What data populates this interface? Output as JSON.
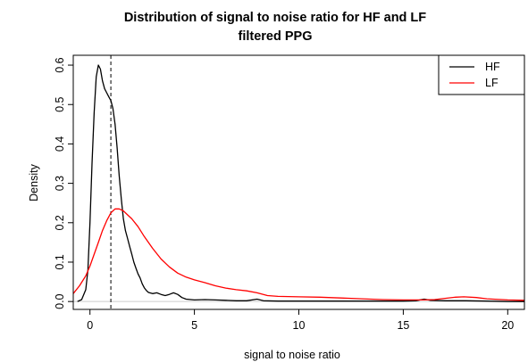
{
  "chart_data": {
    "type": "line",
    "title_line1": "Distribution of signal to noise ratio for HF and LF",
    "title_line2": "filtered PPG",
    "xlabel": "signal to noise ratio",
    "ylabel": "Density",
    "xlim": [
      -0.8,
      20.8
    ],
    "ylim": [
      -0.02,
      0.625
    ],
    "x_ticks": [
      0,
      5,
      10,
      15,
      20
    ],
    "x_tick_labels": [
      "0",
      "5",
      "10",
      "15",
      "20"
    ],
    "y_ticks": [
      0.0,
      0.1,
      0.2,
      0.3,
      0.4,
      0.5,
      0.6
    ],
    "y_tick_labels": [
      "0.0",
      "0.1",
      "0.2",
      "0.3",
      "0.4",
      "0.5",
      "0.6"
    ],
    "reference_line": {
      "x": 1,
      "style": "dashed",
      "color": "#000000"
    },
    "baseline": {
      "y": 0,
      "color": "#cccccc"
    },
    "legend": {
      "position": "top-right",
      "entries": [
        {
          "label": "HF",
          "color": "#000000"
        },
        {
          "label": "LF",
          "color": "#ff0000"
        }
      ]
    },
    "series": [
      {
        "name": "HF",
        "color": "#000000",
        "points": [
          [
            -0.6,
            0.0
          ],
          [
            -0.4,
            0.005
          ],
          [
            -0.2,
            0.03
          ],
          [
            -0.1,
            0.08
          ],
          [
            0.0,
            0.2
          ],
          [
            0.1,
            0.35
          ],
          [
            0.2,
            0.48
          ],
          [
            0.3,
            0.57
          ],
          [
            0.4,
            0.6
          ],
          [
            0.5,
            0.59
          ],
          [
            0.6,
            0.56
          ],
          [
            0.7,
            0.54
          ],
          [
            0.8,
            0.53
          ],
          [
            0.9,
            0.52
          ],
          [
            1.0,
            0.51
          ],
          [
            1.1,
            0.49
          ],
          [
            1.2,
            0.45
          ],
          [
            1.3,
            0.39
          ],
          [
            1.4,
            0.32
          ],
          [
            1.5,
            0.26
          ],
          [
            1.6,
            0.21
          ],
          [
            1.7,
            0.18
          ],
          [
            1.8,
            0.16
          ],
          [
            1.9,
            0.14
          ],
          [
            2.0,
            0.12
          ],
          [
            2.1,
            0.1
          ],
          [
            2.2,
            0.085
          ],
          [
            2.3,
            0.07
          ],
          [
            2.4,
            0.06
          ],
          [
            2.5,
            0.045
          ],
          [
            2.6,
            0.035
          ],
          [
            2.7,
            0.028
          ],
          [
            2.8,
            0.023
          ],
          [
            3.0,
            0.02
          ],
          [
            3.2,
            0.022
          ],
          [
            3.4,
            0.018
          ],
          [
            3.6,
            0.015
          ],
          [
            3.8,
            0.018
          ],
          [
            4.0,
            0.022
          ],
          [
            4.2,
            0.018
          ],
          [
            4.4,
            0.01
          ],
          [
            4.6,
            0.006
          ],
          [
            5.0,
            0.004
          ],
          [
            5.5,
            0.005
          ],
          [
            6.0,
            0.004
          ],
          [
            6.5,
            0.003
          ],
          [
            7.0,
            0.002
          ],
          [
            7.5,
            0.002
          ],
          [
            8.0,
            0.006
          ],
          [
            8.3,
            0.002
          ],
          [
            9.0,
            0.001
          ],
          [
            10.0,
            0.001
          ],
          [
            11.0,
            0.001
          ],
          [
            12.0,
            0.001
          ],
          [
            13.0,
            0.001
          ],
          [
            14.0,
            0.001
          ],
          [
            15.0,
            0.001
          ],
          [
            15.6,
            0.002
          ],
          [
            16.0,
            0.006
          ],
          [
            16.3,
            0.003
          ],
          [
            17.0,
            0.002
          ],
          [
            18.0,
            0.002
          ],
          [
            19.0,
            0.001
          ],
          [
            20.0,
            0.0
          ],
          [
            20.8,
            0.0
          ]
        ]
      },
      {
        "name": "LF",
        "color": "#ff0000",
        "points": [
          [
            -0.8,
            0.02
          ],
          [
            -0.5,
            0.04
          ],
          [
            -0.2,
            0.065
          ],
          [
            0.0,
            0.09
          ],
          [
            0.2,
            0.12
          ],
          [
            0.4,
            0.15
          ],
          [
            0.6,
            0.18
          ],
          [
            0.8,
            0.205
          ],
          [
            1.0,
            0.225
          ],
          [
            1.2,
            0.235
          ],
          [
            1.4,
            0.235
          ],
          [
            1.6,
            0.23
          ],
          [
            1.8,
            0.22
          ],
          [
            2.0,
            0.21
          ],
          [
            2.3,
            0.19
          ],
          [
            2.6,
            0.165
          ],
          [
            3.0,
            0.135
          ],
          [
            3.4,
            0.108
          ],
          [
            3.8,
            0.088
          ],
          [
            4.2,
            0.072
          ],
          [
            4.6,
            0.062
          ],
          [
            5.0,
            0.055
          ],
          [
            5.5,
            0.048
          ],
          [
            6.0,
            0.04
          ],
          [
            6.5,
            0.034
          ],
          [
            7.0,
            0.03
          ],
          [
            7.5,
            0.027
          ],
          [
            8.0,
            0.022
          ],
          [
            8.5,
            0.015
          ],
          [
            9.0,
            0.013
          ],
          [
            10.0,
            0.012
          ],
          [
            11.0,
            0.011
          ],
          [
            12.0,
            0.009
          ],
          [
            13.0,
            0.007
          ],
          [
            14.0,
            0.005
          ],
          [
            15.0,
            0.004
          ],
          [
            16.0,
            0.004
          ],
          [
            16.5,
            0.005
          ],
          [
            17.0,
            0.008
          ],
          [
            17.5,
            0.011
          ],
          [
            17.9,
            0.012
          ],
          [
            18.5,
            0.01
          ],
          [
            19.0,
            0.007
          ],
          [
            20.0,
            0.004
          ],
          [
            20.8,
            0.003
          ]
        ]
      }
    ]
  }
}
